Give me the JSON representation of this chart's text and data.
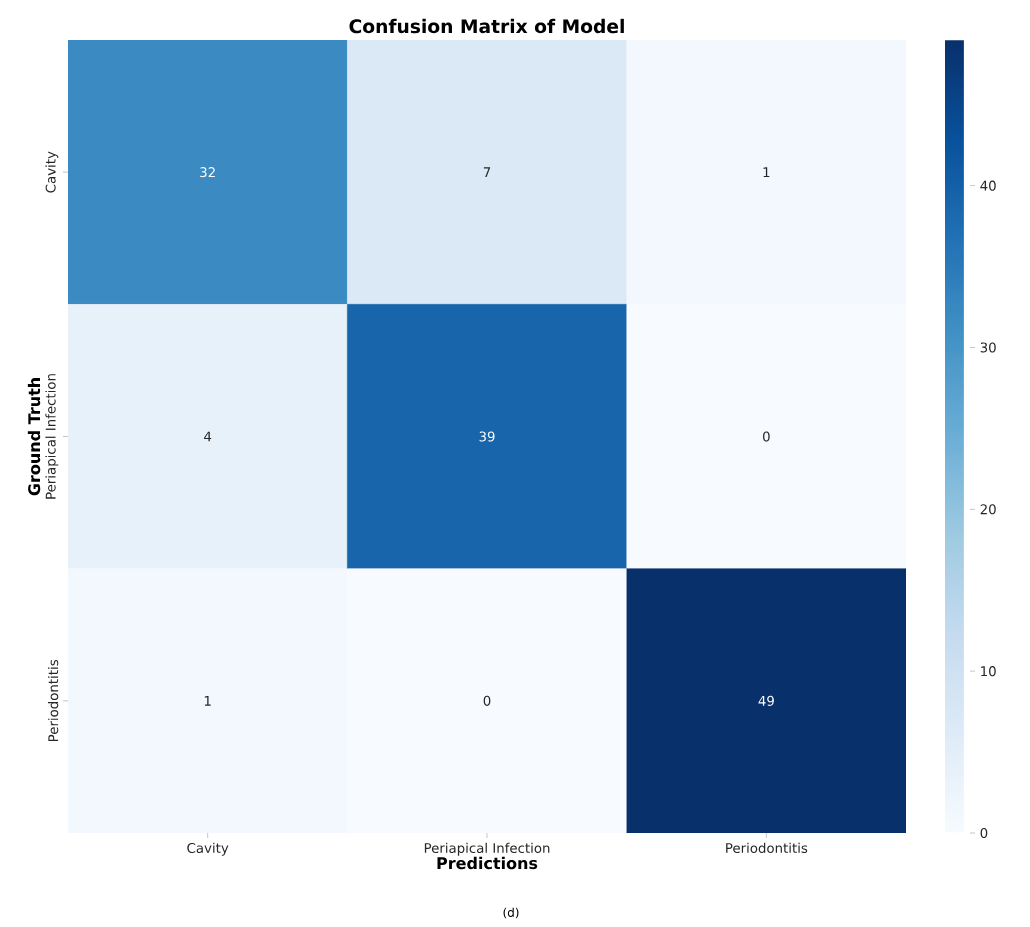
{
  "chart_data": {
    "type": "heatmap",
    "title": "Confusion Matrix of Model",
    "xlabel": "Predictions",
    "ylabel": "Ground Truth",
    "categories": [
      "Cavity",
      "Periapical Infection",
      "Periodontitis"
    ],
    "y_categories": [
      "Cavity",
      "Periapical Infection",
      "Periodontitis"
    ],
    "cells": [
      [
        32,
        7,
        1
      ],
      [
        4,
        39,
        0
      ],
      [
        1,
        0,
        49
      ]
    ],
    "clim": [
      0,
      49
    ],
    "cticks": [
      0,
      10,
      20,
      30,
      40
    ],
    "data_labels": true,
    "annotations": [
      "(d)"
    ]
  }
}
